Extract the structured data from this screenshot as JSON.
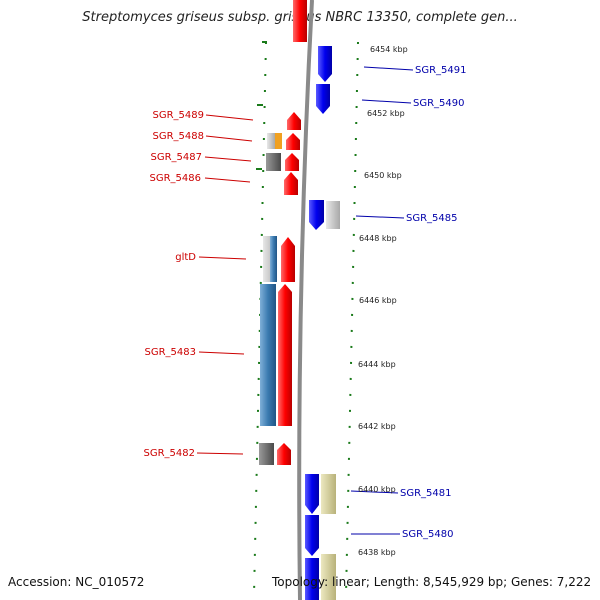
{
  "header": {
    "title": "Streptomyces griseus subsp. griseus NBRC 13350, complete gen..."
  },
  "footer": {
    "accession": "Accession: NC_010572",
    "topology": "Topology: linear; Length: 8,545,929 bp; Genes: 7,222"
  },
  "map": {
    "kbp_labels": [
      "6454 kbp",
      "6452 kbp",
      "6450 kbp",
      "6448 kbp",
      "6446 kbp",
      "6444 kbp",
      "6442 kbp",
      "6440 kbp",
      "6438 kbp"
    ],
    "left_genes": [
      "SGR_5489",
      "SGR_5488",
      "SGR_5487",
      "SGR_5486",
      "gltD",
      "SGR_5483",
      "SGR_5482"
    ],
    "right_genes": [
      "SGR_5491",
      "SGR_5490",
      "SGR_5485",
      "SGR_5481",
      "SGR_5480"
    ],
    "colors": {
      "forward_strand": "#ff0000",
      "reverse_strand": "#0000ee",
      "homology_blue": "#3a7ab0",
      "gray": "#6e6e6e",
      "light_gray": "#c8c8c8",
      "orange": "#f0a020",
      "khaki": "#d4cf98",
      "tick_green": "#1a7a1a",
      "backbone": "#8a8a8a"
    }
  }
}
